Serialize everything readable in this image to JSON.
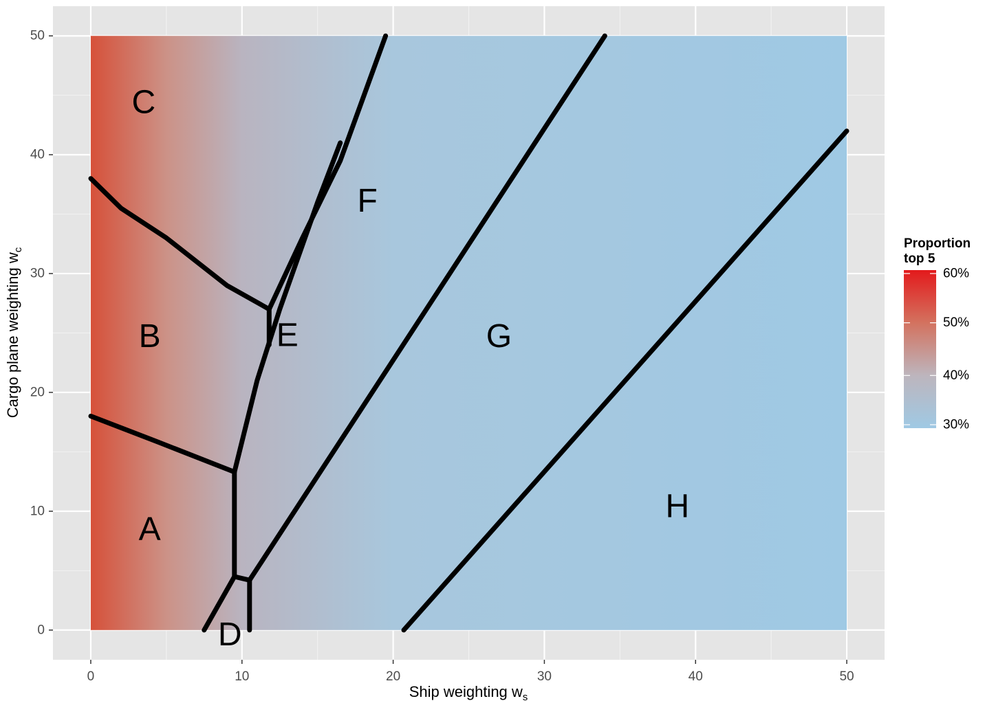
{
  "chart_data": {
    "type": "heatmap",
    "xlabel": "Ship weighting w",
    "xlabel_sub": "s",
    "ylabel": "Cargo plane weighting w",
    "ylabel_sub": "c",
    "xlim": [
      -2.5,
      52.5
    ],
    "ylim": [
      -2.5,
      52.5
    ],
    "x_ticks": [
      0,
      10,
      20,
      30,
      40,
      50
    ],
    "y_ticks": [
      0,
      10,
      20,
      30,
      40,
      50
    ],
    "x_tick_labels": [
      "0",
      "10",
      "20",
      "30",
      "40",
      "50"
    ],
    "y_tick_labels": [
      "0",
      "10",
      "20",
      "30",
      "40",
      "50"
    ],
    "grid": true,
    "fill_range": {
      "x": [
        0,
        50
      ],
      "y": [
        0,
        50
      ]
    },
    "fill_gradient": {
      "direction": "x",
      "stops": [
        {
          "x": 0,
          "color": "#d6513a"
        },
        {
          "x": 5,
          "color": "#cc9287"
        },
        {
          "x": 10,
          "color": "#b9b4c0"
        },
        {
          "x": 20,
          "color": "#a8c7dd"
        },
        {
          "x": 50,
          "color": "#9fc9e4"
        }
      ]
    },
    "boundaries": [
      {
        "points": [
          [
            0,
            38
          ],
          [
            2,
            35.5
          ],
          [
            5,
            33
          ],
          [
            9,
            29
          ],
          [
            11.8,
            27
          ]
        ]
      },
      {
        "points": [
          [
            11.8,
            27
          ],
          [
            11.8,
            24
          ]
        ]
      },
      {
        "points": [
          [
            11.8,
            27
          ],
          [
            14,
            33
          ],
          [
            16.5,
            39.5
          ],
          [
            19.5,
            50
          ]
        ]
      },
      {
        "points": [
          [
            9.5,
            13.3
          ],
          [
            11,
            21
          ],
          [
            12.5,
            27
          ],
          [
            15,
            36
          ],
          [
            16.5,
            41
          ]
        ]
      },
      {
        "points": [
          [
            0,
            18
          ],
          [
            4.5,
            15.8
          ],
          [
            9.5,
            13.3
          ]
        ]
      },
      {
        "points": [
          [
            9.5,
            13.3
          ],
          [
            9.5,
            4.5
          ]
        ]
      },
      {
        "points": [
          [
            9.5,
            4.5
          ],
          [
            10.5,
            4.2
          ]
        ]
      },
      {
        "points": [
          [
            10.5,
            4.2
          ],
          [
            10.5,
            0
          ]
        ]
      },
      {
        "points": [
          [
            7.5,
            0
          ],
          [
            9.5,
            4.5
          ]
        ]
      },
      {
        "points": [
          [
            10.5,
            4.2
          ],
          [
            34,
            50
          ]
        ]
      },
      {
        "points": [
          [
            20.7,
            0
          ],
          [
            50,
            42
          ]
        ]
      }
    ],
    "regions": [
      {
        "label": "A",
        "x": 3.9,
        "y": 8.5
      },
      {
        "label": "B",
        "x": 3.9,
        "y": 24.7
      },
      {
        "label": "C",
        "x": 3.5,
        "y": 44.4
      },
      {
        "label": "D",
        "x": 9.2,
        "y": -0.4
      },
      {
        "label": "E",
        "x": 13,
        "y": 24.8
      },
      {
        "label": "F",
        "x": 18.3,
        "y": 36.1
      },
      {
        "label": "G",
        "x": 27,
        "y": 24.7
      },
      {
        "label": "H",
        "x": 38.8,
        "y": 10.4
      }
    ],
    "legend": {
      "title_lines": [
        "Proportion",
        "top 5"
      ],
      "placement": "right",
      "range": [
        0.3,
        0.6
      ],
      "ticks": [
        {
          "value": 0.6,
          "label": "60%"
        },
        {
          "value": 0.5,
          "label": "50%"
        },
        {
          "value": 0.4,
          "label": "40%"
        },
        {
          "value": 0.3,
          "label": "30%"
        }
      ],
      "colorbar_stops": [
        {
          "value": 0.3,
          "color": "#9fc9e4"
        },
        {
          "value": 0.4,
          "color": "#bdb5bd"
        },
        {
          "value": 0.5,
          "color": "#d3725f"
        },
        {
          "value": 0.6,
          "color": "#e31a1c"
        }
      ]
    }
  }
}
